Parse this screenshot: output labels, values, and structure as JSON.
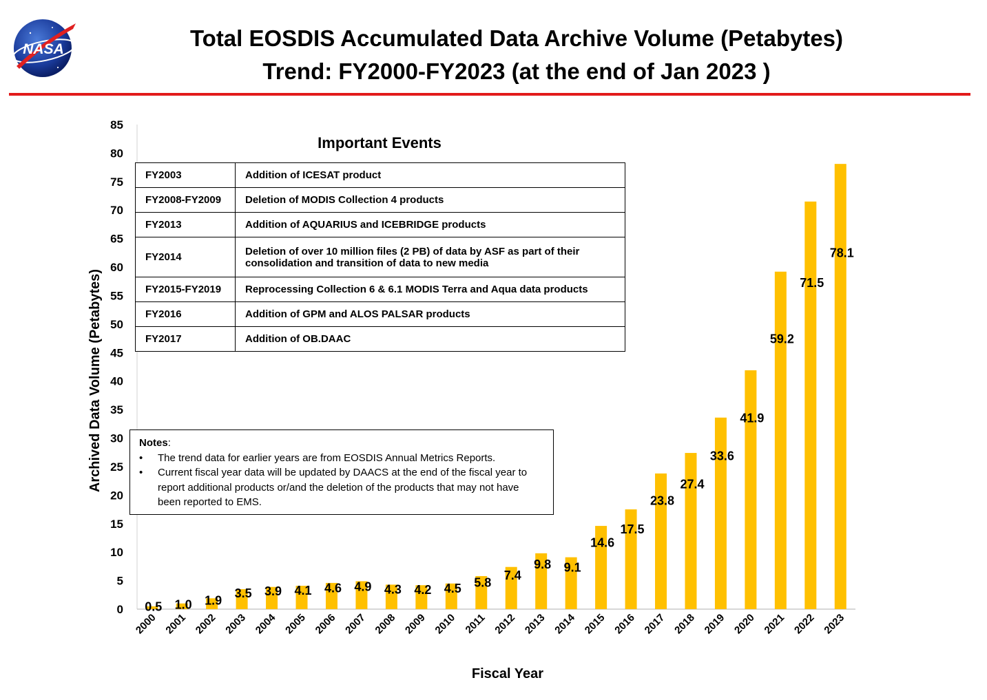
{
  "header": {
    "title_line1": "Total EOSDIS Accumulated Data Archive Volume (Petabytes)",
    "title_line2": "Trend: FY2000-FY2023 (at the end of Jan 2023 )",
    "logo_text": "NASA",
    "rule_color": "#e21b1b"
  },
  "events": {
    "title": "Important Events",
    "rows": [
      {
        "year": "FY2003",
        "event": "Addition of ICESAT product"
      },
      {
        "year": "FY2008-FY2009",
        "event": "Deletion of  MODIS Collection 4 products"
      },
      {
        "year": "FY2013",
        "event": "Addition of AQUARIUS and ICEBRIDGE products"
      },
      {
        "year": "FY2014",
        "event": "Deletion of over 10 million files (2 PB) of data by ASF as part of their consolidation and transition of data to new media"
      },
      {
        "year": "FY2015-FY2019",
        "event": "Reprocessing  Collection 6 & 6.1 MODIS Terra and Aqua data products"
      },
      {
        "year": "FY2016",
        "event": "Addition of GPM and ALOS PALSAR products"
      },
      {
        "year": "FY2017",
        "event": "Addition of OB.DAAC"
      }
    ]
  },
  "notes": {
    "title": "Notes",
    "items": [
      "The trend data for earlier years are from EOSDIS Annual Metrics Reports.",
      "Current fiscal year data will be updated by DAACS at the end of the fiscal year to report additional products or/and the deletion of the products that may not have been reported to EMS."
    ]
  },
  "chart_data": {
    "type": "bar",
    "title": "",
    "xlabel": "Fiscal Year",
    "ylabel": "Archived Data Volume (Petabytes)",
    "ylim": [
      0,
      85
    ],
    "yticks": [
      0,
      5,
      10,
      15,
      20,
      25,
      30,
      35,
      40,
      45,
      50,
      55,
      60,
      65,
      70,
      75,
      80,
      85
    ],
    "grid": false,
    "bar_color": "#ffc000",
    "categories": [
      "2000",
      "2001",
      "2002",
      "2003",
      "2004",
      "2005",
      "2006",
      "2007",
      "2008",
      "2009",
      "2010",
      "2011",
      "2012",
      "2013",
      "2014",
      "2015",
      "2016",
      "2017",
      "2018",
      "2019",
      "2020",
      "2021",
      "2022",
      "2023"
    ],
    "values": [
      0.5,
      1.0,
      1.9,
      3.5,
      3.9,
      4.1,
      4.6,
      4.9,
      4.3,
      4.2,
      4.5,
      5.8,
      7.4,
      9.8,
      9.1,
      14.6,
      17.5,
      23.8,
      27.4,
      33.6,
      41.9,
      59.2,
      71.5,
      78.1
    ],
    "data_labels": [
      "0.5",
      "1.0",
      "1.9",
      "3.5",
      "3.9",
      "4.1",
      "4.6",
      "4.9",
      "4.3",
      "4.2",
      "4.5",
      "5.8",
      "7.4",
      "9.8",
      "9.1",
      "14.6",
      "17.5",
      "23.8",
      "27.4",
      "33.6",
      "41.9",
      "59.2",
      "71.5",
      "78.1"
    ]
  }
}
